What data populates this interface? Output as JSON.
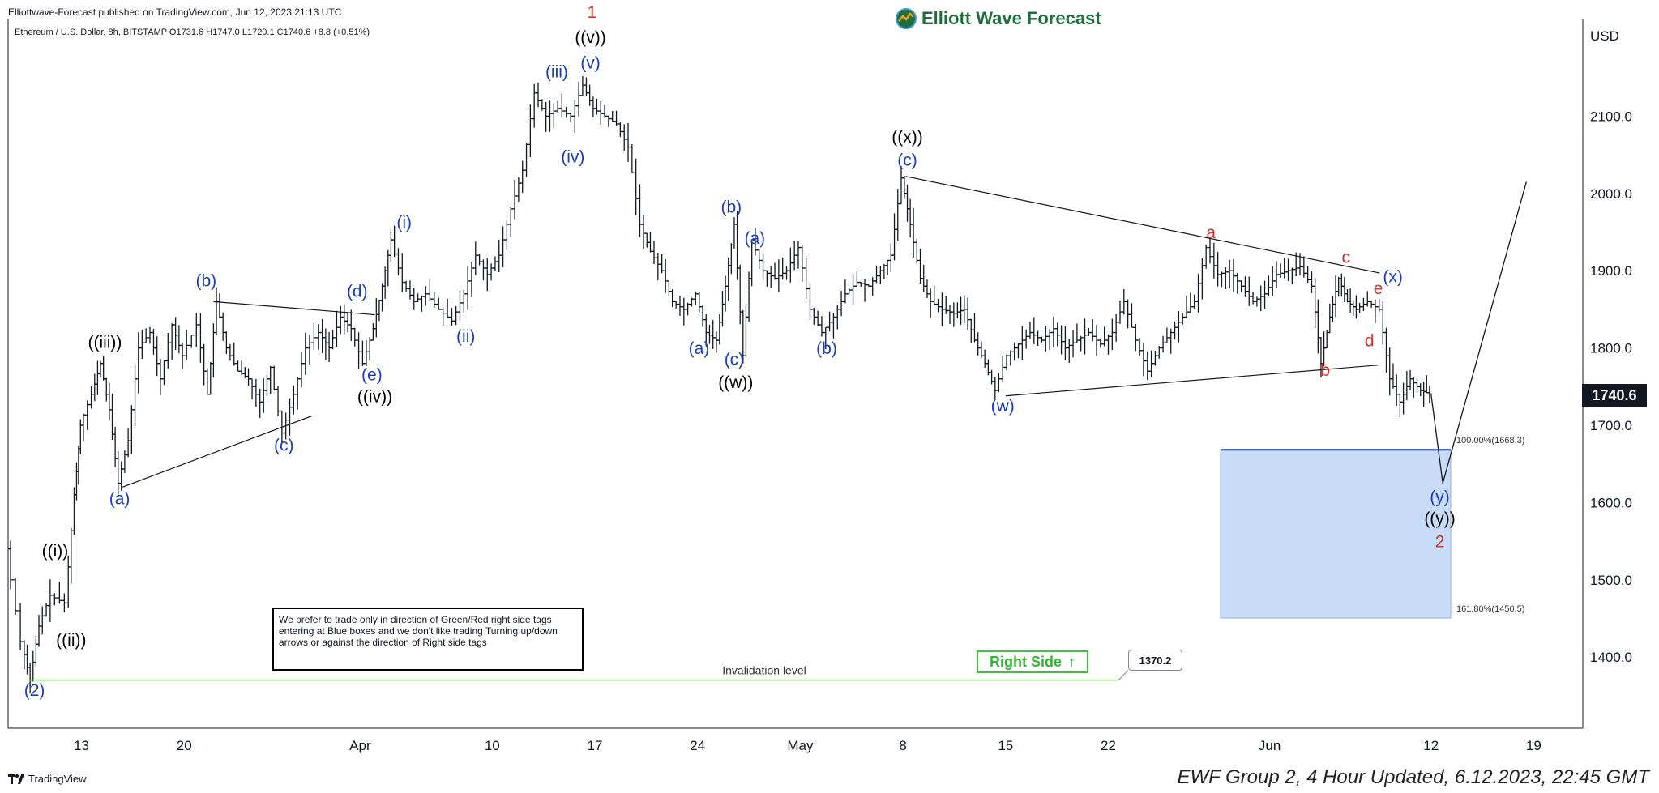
{
  "header": {
    "published": "Elliottwave-Forecast published on TradingView.com, Jun 12, 2023 21:13 UTC",
    "symbol_line": "Ethereum / U.S. Dollar, 8h, BITSTAMP  O1731.6  H1747.0  L1720.1  C1740.6  +8.8 (+0.51%)"
  },
  "brand": {
    "name": "Elliott Wave Forecast",
    "color": "#1f6e3c"
  },
  "footer": {
    "tradingview": "TradingView",
    "ewf": "EWF Group 2, 4 Hour Updated, 6.12.2023, 22:45 GMT"
  },
  "disclaimer": "We prefer to trade only in direction of Green/Red right side tags entering at Blue boxes and we don't like trading Turning up/down arrows or against the direction of Right side tags",
  "right_side": {
    "label": "Right Side",
    "arrow": "↑",
    "color": "#2fb82f"
  },
  "invalidation": {
    "label": "Invalidation level",
    "value": "1370.2",
    "price": 1370.2
  },
  "last_price": {
    "label": "1740.6",
    "value": 1740.6
  },
  "blue_box": {
    "top": 1668.3,
    "bottom": 1450.5,
    "top_label": "100.00%(1668.3)",
    "bottom_label": "161.80%(1450.5)",
    "color": "#c9dcf7"
  },
  "chart_data": {
    "type": "candlestick",
    "ylabel": "USD",
    "ylim": [
      1310,
      2190
    ],
    "y_ticks": [
      1400,
      1500,
      1600,
      1700,
      1800,
      1900,
      2000,
      2100
    ],
    "y_tick_labels": [
      "1400.0",
      "1500.0",
      "1600.0",
      "1700.0",
      "1800.0",
      "1900.0",
      "2000.0",
      "2100.0"
    ],
    "x_ticks": [
      "13",
      "20",
      "Apr",
      "10",
      "17",
      "24",
      "May",
      "8",
      "15",
      "22",
      "Jun",
      "12",
      "19"
    ],
    "x_tick_pos": [
      13,
      20,
      32,
      41,
      48,
      55,
      62,
      69,
      76,
      83,
      94,
      105,
      112
    ],
    "x_range": [
      8,
      116
    ],
    "last_bar_x": 105,
    "price_path": [
      [
        8,
        1540
      ],
      [
        9,
        1420
      ],
      [
        9.6,
        1370
      ],
      [
        10.2,
        1440
      ],
      [
        11,
        1480
      ],
      [
        12,
        1470
      ],
      [
        12.6,
        1610
      ],
      [
        13,
        1700
      ],
      [
        13.8,
        1740
      ],
      [
        14.4,
        1780
      ],
      [
        15,
        1720
      ],
      [
        15.6,
        1625
      ],
      [
        16.3,
        1680
      ],
      [
        17,
        1800
      ],
      [
        17.8,
        1820
      ],
      [
        18.5,
        1760
      ],
      [
        19.3,
        1830
      ],
      [
        20,
        1790
      ],
      [
        21,
        1830
      ],
      [
        21.7,
        1740
      ],
      [
        22.3,
        1860
      ],
      [
        23,
        1800
      ],
      [
        23.8,
        1770
      ],
      [
        24.5,
        1760
      ],
      [
        25.3,
        1730
      ],
      [
        26,
        1775
      ],
      [
        26.8,
        1690
      ],
      [
        27.6,
        1740
      ],
      [
        28.4,
        1800
      ],
      [
        29.3,
        1820
      ],
      [
        30,
        1800
      ],
      [
        30.8,
        1840
      ],
      [
        31.5,
        1825
      ],
      [
        32.3,
        1780
      ],
      [
        33,
        1825
      ],
      [
        33.6,
        1880
      ],
      [
        34.2,
        1940
      ],
      [
        35,
        1885
      ],
      [
        35.8,
        1860
      ],
      [
        36.6,
        1870
      ],
      [
        37.5,
        1850
      ],
      [
        38.4,
        1835
      ],
      [
        39.2,
        1870
      ],
      [
        40,
        1920
      ],
      [
        40.8,
        1895
      ],
      [
        41.6,
        1920
      ],
      [
        42.4,
        1980
      ],
      [
        43.2,
        2030
      ],
      [
        44,
        2130
      ],
      [
        44.8,
        2100
      ],
      [
        45.6,
        2110
      ],
      [
        46.5,
        2100
      ],
      [
        47.3,
        2140
      ],
      [
        48,
        2110
      ],
      [
        48.8,
        2100
      ],
      [
        49.6,
        2090
      ],
      [
        50.4,
        2060
      ],
      [
        51.2,
        1960
      ],
      [
        51.9,
        1925
      ],
      [
        52.7,
        1900
      ],
      [
        53.4,
        1860
      ],
      [
        54.2,
        1850
      ],
      [
        55,
        1870
      ],
      [
        55.7,
        1820
      ],
      [
        56.4,
        1810
      ],
      [
        57,
        1880
      ],
      [
        57.6,
        1960
      ],
      [
        58.2,
        1790
      ],
      [
        58.8,
        1940
      ],
      [
        59.6,
        1900
      ],
      [
        60.4,
        1890
      ],
      [
        61.2,
        1900
      ],
      [
        62,
        1930
      ],
      [
        62.8,
        1850
      ],
      [
        63.6,
        1820
      ],
      [
        64.4,
        1840
      ],
      [
        65.2,
        1870
      ],
      [
        66,
        1885
      ],
      [
        66.8,
        1880
      ],
      [
        67.6,
        1900
      ],
      [
        68.3,
        1920
      ],
      [
        69,
        2020
      ],
      [
        69.6,
        1960
      ],
      [
        70.3,
        1890
      ],
      [
        71,
        1860
      ],
      [
        71.8,
        1850
      ],
      [
        72.6,
        1845
      ],
      [
        73.3,
        1850
      ],
      [
        74,
        1810
      ],
      [
        74.7,
        1780
      ],
      [
        75.4,
        1745
      ],
      [
        76.2,
        1790
      ],
      [
        77,
        1805
      ],
      [
        77.8,
        1820
      ],
      [
        78.6,
        1810
      ],
      [
        79.4,
        1825
      ],
      [
        80.2,
        1800
      ],
      [
        81,
        1810
      ],
      [
        81.8,
        1820
      ],
      [
        82.6,
        1805
      ],
      [
        83.4,
        1820
      ],
      [
        84.2,
        1860
      ],
      [
        85,
        1810
      ],
      [
        85.8,
        1770
      ],
      [
        86.6,
        1800
      ],
      [
        87.4,
        1820
      ],
      [
        88.2,
        1840
      ],
      [
        89,
        1860
      ],
      [
        89.8,
        1930
      ],
      [
        90.6,
        1895
      ],
      [
        91.4,
        1900
      ],
      [
        92.2,
        1880
      ],
      [
        93,
        1860
      ],
      [
        93.8,
        1870
      ],
      [
        94.6,
        1895
      ],
      [
        95.4,
        1900
      ],
      [
        96.2,
        1905
      ],
      [
        97,
        1880
      ],
      [
        97.6,
        1780
      ],
      [
        98.2,
        1840
      ],
      [
        98.8,
        1890
      ],
      [
        99.4,
        1860
      ],
      [
        100,
        1850
      ],
      [
        100.8,
        1860
      ],
      [
        101.6,
        1850
      ],
      [
        102.3,
        1760
      ],
      [
        103,
        1730
      ],
      [
        103.7,
        1760
      ],
      [
        104.4,
        1745
      ],
      [
        105,
        1740.6
      ]
    ],
    "projection": [
      [
        105,
        1740.6
      ],
      [
        105.8,
        1625
      ],
      [
        111.5,
        2015
      ]
    ],
    "trendlines": [
      {
        "name": "abc-triangle-upper",
        "points": [
          [
            22,
            1860
          ],
          [
            33,
            1843
          ]
        ]
      },
      {
        "name": "abc-triangle-lower",
        "points": [
          [
            15.8,
            1620
          ],
          [
            28.7,
            1712
          ]
        ]
      },
      {
        "name": "x-triangle-upper",
        "points": [
          [
            69.2,
            2022
          ],
          [
            101.5,
            1897
          ]
        ]
      },
      {
        "name": "x-triangle-lower",
        "points": [
          [
            76,
            1738
          ],
          [
            101.5,
            1778
          ]
        ]
      }
    ],
    "annotations": [
      {
        "text": "(2)",
        "x": 9.8,
        "y": 1350,
        "color": "#1a3dbe"
      },
      {
        "text": "((i))",
        "x": 11.2,
        "y": 1530,
        "color": "#000000"
      },
      {
        "text": "((ii))",
        "x": 12.3,
        "y": 1415,
        "color": "#000000"
      },
      {
        "text": "((iii))",
        "x": 14.6,
        "y": 1800,
        "color": "#000000"
      },
      {
        "text": "(a)",
        "x": 15.6,
        "y": 1598,
        "color": "#1a3dbe"
      },
      {
        "text": "(b)",
        "x": 21.5,
        "y": 1880,
        "color": "#1a3dbe"
      },
      {
        "text": "(c)",
        "x": 26.8,
        "y": 1667,
        "color": "#1a3dbe"
      },
      {
        "text": "(d)",
        "x": 31.8,
        "y": 1866,
        "color": "#1a3dbe"
      },
      {
        "text": "(e)",
        "x": 32.8,
        "y": 1758,
        "color": "#1a3dbe"
      },
      {
        "text": "((iv))",
        "x": 33,
        "y": 1730,
        "color": "#000000"
      },
      {
        "text": "(i)",
        "x": 35,
        "y": 1955,
        "color": "#1a3dbe"
      },
      {
        "text": "(ii)",
        "x": 39.2,
        "y": 1808,
        "color": "#1a3dbe"
      },
      {
        "text": "(iii)",
        "x": 45.4,
        "y": 2150,
        "color": "#1a3dbe"
      },
      {
        "text": "(iv)",
        "x": 46.5,
        "y": 2040,
        "color": "#1a3dbe"
      },
      {
        "text": "(v)",
        "x": 47.7,
        "y": 2162,
        "color": "#1a3dbe"
      },
      {
        "text": "((v))",
        "x": 47.7,
        "y": 2195,
        "color": "#000000"
      },
      {
        "text": "1",
        "x": 47.8,
        "y": 2227,
        "color": "#d0332e"
      },
      {
        "text": "(a)",
        "x": 55.1,
        "y": 1792,
        "color": "#1a3dbe"
      },
      {
        "text": "(b)",
        "x": 57.3,
        "y": 1975,
        "color": "#1a3dbe"
      },
      {
        "text": "(c)",
        "x": 57.5,
        "y": 1778,
        "color": "#1a3dbe"
      },
      {
        "text": "((w))",
        "x": 57.6,
        "y": 1748,
        "color": "#000000"
      },
      {
        "text": "(a)",
        "x": 58.9,
        "y": 1935,
        "color": "#1a3dbe"
      },
      {
        "text": "(b)",
        "x": 63.8,
        "y": 1792,
        "color": "#1a3dbe"
      },
      {
        "text": "(c)",
        "x": 69.3,
        "y": 2036,
        "color": "#1a3dbe"
      },
      {
        "text": "((x))",
        "x": 69.3,
        "y": 2066,
        "color": "#000000"
      },
      {
        "text": "(w)",
        "x": 75.8,
        "y": 1718,
        "color": "#1a3dbe"
      },
      {
        "text": "a",
        "x": 90,
        "y": 1942,
        "color": "#d0332e"
      },
      {
        "text": "b",
        "x": 97.8,
        "y": 1764,
        "color": "#d0332e"
      },
      {
        "text": "c",
        "x": 99.2,
        "y": 1910,
        "color": "#d0332e"
      },
      {
        "text": "d",
        "x": 100.8,
        "y": 1802,
        "color": "#d0332e"
      },
      {
        "text": "e",
        "x": 101.4,
        "y": 1870,
        "color": "#d0332e"
      },
      {
        "text": "(x)",
        "x": 102.4,
        "y": 1885,
        "color": "#1a3dbe"
      },
      {
        "text": "(y)",
        "x": 105.6,
        "y": 1600,
        "color": "#1a3dbe"
      },
      {
        "text": "((y))",
        "x": 105.6,
        "y": 1572,
        "color": "#000000"
      },
      {
        "text": "2",
        "x": 105.6,
        "y": 1542,
        "color": "#d0332e"
      }
    ]
  }
}
